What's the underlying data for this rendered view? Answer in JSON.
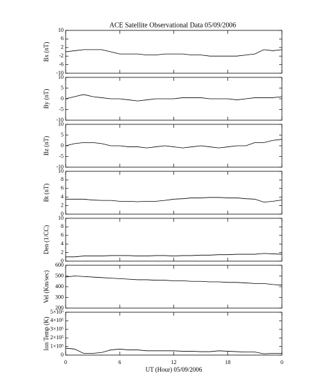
{
  "chart_data": [
    {
      "type": "line",
      "title": "ACE Satellite Observational Data   05/09/2006",
      "ylabel": "Bx (nT)",
      "color": "#000000",
      "x": [
        0,
        1,
        2,
        3,
        4,
        5,
        6,
        7,
        8,
        9,
        10,
        11,
        12,
        13,
        14,
        15,
        16,
        17,
        18,
        19,
        20,
        21,
        22,
        23,
        24
      ],
      "values": [
        0,
        0.5,
        1,
        1,
        1,
        0,
        -1,
        -1,
        -1,
        -1.5,
        -1.5,
        -1,
        -1,
        -1,
        -1.5,
        -1.5,
        -2,
        -2,
        -2,
        -2,
        -1.5,
        -1,
        1,
        0.5,
        1
      ],
      "xlim": [
        0,
        24
      ],
      "ylim": [
        -10,
        10
      ],
      "yticks": [
        10,
        6,
        2,
        -2,
        -6,
        -10
      ]
    },
    {
      "type": "line",
      "ylabel": "By (nT)",
      "color": "#000000",
      "x": [
        0,
        1,
        2,
        3,
        4,
        5,
        6,
        7,
        8,
        9,
        10,
        11,
        12,
        13,
        14,
        15,
        16,
        17,
        18,
        19,
        20,
        21,
        22,
        23,
        24
      ],
      "values": [
        0,
        1,
        2,
        1,
        0.5,
        0,
        0,
        -0.5,
        -1,
        -0.5,
        0,
        0,
        0,
        0.5,
        0.5,
        0.5,
        0,
        0,
        0,
        -0.5,
        0,
        0.5,
        0.5,
        0.5,
        1
      ],
      "xlim": [
        0,
        24
      ],
      "ylim": [
        -10,
        10
      ],
      "yticks": [
        10,
        5,
        0,
        -5,
        -10
      ]
    },
    {
      "type": "line",
      "ylabel": "Bz (nT)",
      "color": "#000000",
      "x": [
        0,
        1,
        2,
        3,
        4,
        5,
        6,
        7,
        8,
        9,
        10,
        11,
        12,
        13,
        14,
        15,
        16,
        17,
        18,
        19,
        20,
        21,
        22,
        23,
        24
      ],
      "values": [
        0,
        1,
        1.5,
        1.5,
        1,
        0,
        0,
        -0.5,
        -0.5,
        -1,
        -0.5,
        0,
        -0.5,
        -1,
        -0.5,
        0,
        -0.5,
        -1,
        -0.5,
        0,
        0,
        1.5,
        1.5,
        2.5,
        3
      ],
      "xlim": [
        0,
        24
      ],
      "ylim": [
        -10,
        10
      ],
      "yticks": [
        10,
        5,
        0,
        -5,
        -10
      ]
    },
    {
      "type": "line",
      "ylabel": "Bt (nT)",
      "color": "#000000",
      "x": [
        0,
        1,
        2,
        3,
        4,
        5,
        6,
        7,
        8,
        9,
        10,
        11,
        12,
        13,
        14,
        15,
        16,
        17,
        18,
        19,
        20,
        21,
        22,
        23,
        24
      ],
      "values": [
        3.5,
        3.5,
        3.5,
        3.3,
        3.2,
        3.2,
        3,
        3,
        2.9,
        3,
        3,
        3.2,
        3.5,
        3.6,
        3.8,
        3.8,
        3.9,
        3.9,
        3.8,
        3.8,
        3.6,
        3.5,
        2.8,
        3,
        3.3
      ],
      "xlim": [
        0,
        24
      ],
      "ylim": [
        0,
        10
      ],
      "yticks": [
        10,
        8,
        6,
        4,
        2,
        0
      ]
    },
    {
      "type": "line",
      "ylabel": "Den (1/CC)",
      "color": "#000000",
      "x": [
        0,
        1,
        2,
        3,
        4,
        5,
        6,
        7,
        8,
        9,
        10,
        11,
        12,
        13,
        14,
        15,
        16,
        17,
        18,
        19,
        20,
        21,
        22,
        23,
        24
      ],
      "values": [
        1,
        1,
        1.2,
        1.2,
        1.2,
        1.3,
        1.3,
        1.3,
        1.2,
        1.2,
        1.3,
        1.3,
        1.2,
        1.3,
        1.3,
        1.4,
        1.4,
        1.5,
        1.5,
        1.6,
        1.6,
        1.6,
        1.8,
        1.7,
        1.6
      ],
      "xlim": [
        0,
        24
      ],
      "ylim": [
        0,
        10
      ],
      "yticks": [
        10,
        8,
        6,
        4,
        2,
        0
      ]
    },
    {
      "type": "line",
      "ylabel": "Vel (Km/sec)",
      "color": "#000000",
      "x": [
        0,
        1,
        2,
        3,
        4,
        5,
        6,
        7,
        8,
        9,
        10,
        11,
        12,
        13,
        14,
        15,
        16,
        17,
        18,
        19,
        20,
        21,
        22,
        23,
        24
      ],
      "values": [
        490,
        500,
        495,
        490,
        485,
        480,
        475,
        470,
        465,
        465,
        460,
        460,
        455,
        455,
        450,
        450,
        445,
        445,
        440,
        440,
        435,
        430,
        430,
        420,
        415
      ],
      "xlim": [
        0,
        24
      ],
      "ylim": [
        200,
        600
      ],
      "yticks": [
        600,
        500,
        400,
        300,
        200
      ]
    },
    {
      "type": "line",
      "ylabel": "Ion Temp (K)",
      "xlabel": "UT (Hour)   05/09/2006",
      "color": "#000000",
      "x": [
        0,
        1,
        2,
        3,
        4,
        5,
        6,
        7,
        8,
        9,
        10,
        11,
        12,
        13,
        14,
        15,
        16,
        17,
        18,
        19,
        20,
        21,
        22,
        23,
        24
      ],
      "values": [
        80000,
        70000,
        20000,
        20000,
        30000,
        60000,
        70000,
        60000,
        60000,
        50000,
        50000,
        50000,
        50000,
        45000,
        45000,
        40000,
        40000,
        50000,
        45000,
        40000,
        35000,
        35000,
        15000,
        20000,
        20000
      ],
      "xlim": [
        0,
        24
      ],
      "ylim": [
        0,
        500000
      ],
      "yticks": [
        {
          "value": 500000,
          "label": "5×10⁵"
        },
        {
          "value": 400000,
          "label": "4×10⁵"
        },
        {
          "value": 300000,
          "label": "3×10⁵"
        },
        {
          "value": 200000,
          "label": "2×10⁵"
        },
        {
          "value": 100000,
          "label": "1×10⁵"
        },
        0
      ],
      "xticks": [
        0,
        6,
        12,
        18,
        {
          "value": 24,
          "label": "0"
        }
      ]
    }
  ]
}
